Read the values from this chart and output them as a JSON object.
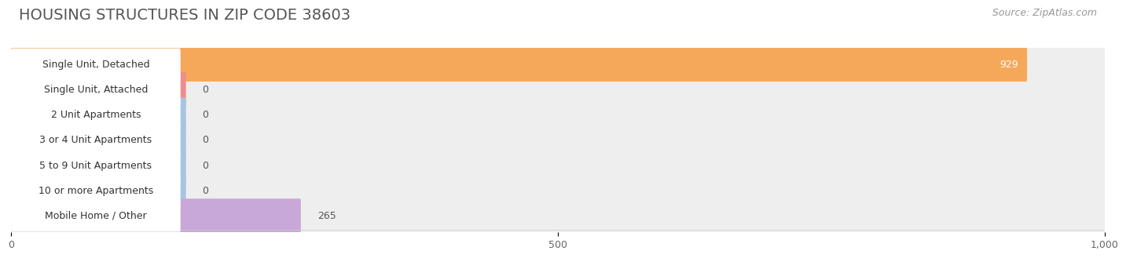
{
  "title": "HOUSING STRUCTURES IN ZIP CODE 38603",
  "source": "Source: ZipAtlas.com",
  "categories": [
    "Single Unit, Detached",
    "Single Unit, Attached",
    "2 Unit Apartments",
    "3 or 4 Unit Apartments",
    "5 to 9 Unit Apartments",
    "10 or more Apartments",
    "Mobile Home / Other"
  ],
  "values": [
    929,
    0,
    0,
    0,
    0,
    0,
    265
  ],
  "bar_colors": [
    "#F5A85A",
    "#F08C8C",
    "#A8C4E0",
    "#A8C4E0",
    "#A8C4E0",
    "#A8C4E0",
    "#C8A8D8"
  ],
  "xlim": [
    0,
    1000
  ],
  "xticks": [
    0,
    500,
    1000
  ],
  "xticklabels": [
    "0",
    "500",
    "1,000"
  ],
  "background_color": "#ffffff",
  "bar_bg_color": "#eeeeee",
  "title_fontsize": 14,
  "source_fontsize": 9,
  "label_fontsize": 9,
  "value_fontsize": 9,
  "zero_bar_width": 160
}
